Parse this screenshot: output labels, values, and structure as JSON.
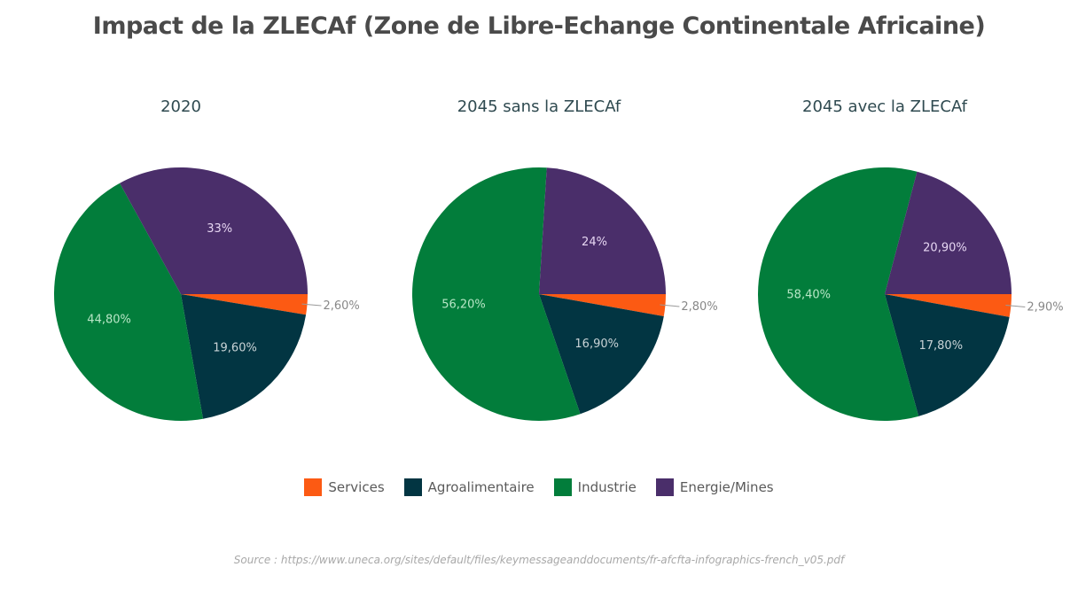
{
  "chart_data": [
    {
      "type": "pie",
      "title": "2020",
      "categories": [
        "Services",
        "Agroalimentaire",
        "Industrie",
        "Energie/Mines"
      ],
      "values": [
        2.6,
        19.6,
        44.8,
        33
      ],
      "labels": [
        "2,60%",
        "19,60%",
        "44,80%",
        "33%"
      ]
    },
    {
      "type": "pie",
      "title": "2045 sans la ZLECAf",
      "categories": [
        "Services",
        "Agroalimentaire",
        "Industrie",
        "Energie/Mines"
      ],
      "values": [
        2.8,
        16.9,
        56.2,
        24
      ],
      "labels": [
        "2,80%",
        "16,90%",
        "56,20%",
        "24%"
      ]
    },
    {
      "type": "pie",
      "title": "2045 avec la ZLECAf",
      "categories": [
        "Services",
        "Agroalimentaire",
        "Industrie",
        "Energie/Mines"
      ],
      "values": [
        2.9,
        17.8,
        58.4,
        20.9
      ],
      "labels": [
        "2,90%",
        "17,80%",
        "58,40%",
        "20,90%"
      ]
    }
  ],
  "title": "Impact de la ZLECAf (Zone de Libre-Echange Continentale Africaine)",
  "legend": {
    "position": "bottom",
    "items": [
      {
        "label": "Services",
        "color": "#fc5a13"
      },
      {
        "label": "Agroalimentaire",
        "color": "#023542"
      },
      {
        "label": "Industrie",
        "color": "#027d3b"
      },
      {
        "label": "Energie/Mines",
        "color": "#4a2e6a"
      }
    ]
  },
  "source": "Source :  https://www.uneca.org/sites/default/files/keymessageanddocuments/fr-afcfta-infographics-french_v05.pdf"
}
